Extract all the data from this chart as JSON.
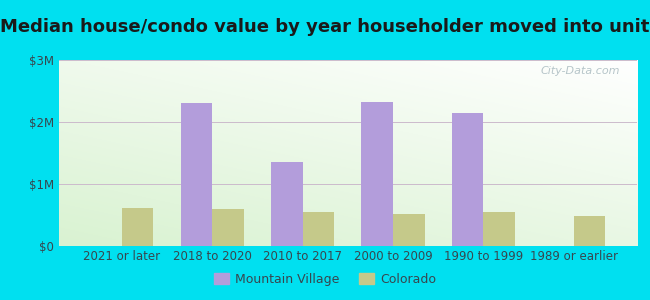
{
  "title": "Median house/condo value by year householder moved into unit",
  "categories": [
    "2021 or later",
    "2018 to 2020",
    "2010 to 2017",
    "2000 to 2009",
    "1990 to 1999",
    "1989 or earlier"
  ],
  "mountain_village": [
    0,
    2300000,
    1350000,
    2320000,
    2150000,
    0
  ],
  "colorado": [
    620000,
    590000,
    550000,
    510000,
    550000,
    490000
  ],
  "mountain_village_color": "#b39ddb",
  "colorado_color": "#c5c98a",
  "ylim": [
    0,
    3000000
  ],
  "yticks": [
    0,
    1000000,
    2000000,
    3000000
  ],
  "ytick_labels": [
    "$0",
    "$1M",
    "$2M",
    "$3M"
  ],
  "bar_width": 0.35,
  "background_outer": "#00e0f0",
  "watermark": "City-Data.com",
  "legend_mv": "Mountain Village",
  "legend_co": "Colorado",
  "title_fontsize": 13,
  "axis_label_fontsize": 8.5
}
